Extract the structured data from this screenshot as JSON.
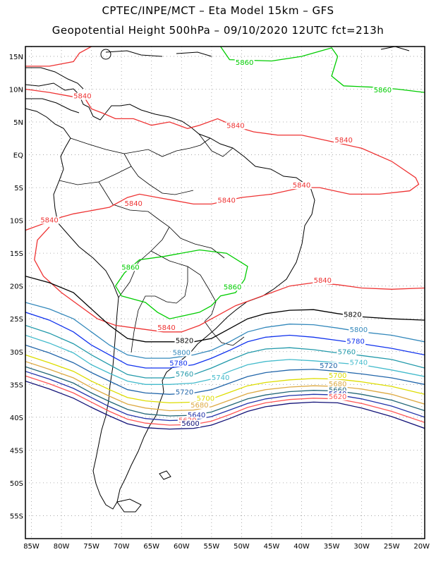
{
  "title_line1": "CPTEC/INPE/MCT –   Eta Model 15km – GFS",
  "title_line2": "Geopotential Height 500hPa – 09/10/2020 12UTC fct=213h",
  "map": {
    "lat_labels": [
      "15N",
      "10N",
      "5N",
      "EQ",
      "5S",
      "10S",
      "15S",
      "20S",
      "25S",
      "30S",
      "35S",
      "40S",
      "45S",
      "50S",
      "55S"
    ],
    "lat_values": [
      15,
      10,
      5,
      0,
      -5,
      -10,
      -15,
      -20,
      -25,
      -30,
      -35,
      -40,
      -45,
      -50,
      -55
    ],
    "lon_labels": [
      "85W",
      "80W",
      "75W",
      "70W",
      "65W",
      "60W",
      "55W",
      "50W",
      "45W",
      "40W",
      "35W",
      "30W",
      "25W",
      "20W"
    ],
    "lon_values": [
      -85,
      -80,
      -75,
      -70,
      -65,
      -60,
      -55,
      -50,
      -45,
      -40,
      -35,
      -30,
      -25,
      -20
    ],
    "lon_range": [
      -86,
      -19.5
    ],
    "lat_range": [
      -58.5,
      16.5
    ],
    "grid": "dotted",
    "coastline_color": "#000000"
  },
  "contours": [
    {
      "value": "5860",
      "color": "#00cc00",
      "labels": [
        {
          "text": "5860",
          "lon": -49.5,
          "lat": 13.7
        },
        {
          "text": "5860",
          "lon": -26.5,
          "lat": 9.5
        },
        {
          "text": "5860",
          "lon": -68.5,
          "lat": -17.5
        },
        {
          "text": "5860",
          "lon": -51.5,
          "lat": -20.5
        }
      ]
    },
    {
      "value": "5840",
      "color": "#ee3333",
      "labels": [
        {
          "text": "5840",
          "lon": -76.5,
          "lat": 8.6
        },
        {
          "text": "5840",
          "lon": -51.0,
          "lat": 4.1
        },
        {
          "text": "5840",
          "lon": -33.0,
          "lat": 1.9
        },
        {
          "text": "5840",
          "lon": -40.0,
          "lat": -5.0
        },
        {
          "text": "5840",
          "lon": -52.5,
          "lat": -7.3
        },
        {
          "text": "5840",
          "lon": -68.0,
          "lat": -7.8
        },
        {
          "text": "5840",
          "lon": -82.0,
          "lat": -10.3
        },
        {
          "text": "5840",
          "lon": -36.5,
          "lat": -19.5
        },
        {
          "text": "5840",
          "lon": -62.5,
          "lat": -26.7
        }
      ]
    },
    {
      "value": "5820",
      "color": "#000000",
      "labels": [
        {
          "text": "5820",
          "lon": -59.5,
          "lat": -28.7
        },
        {
          "text": "5820",
          "lon": -31.5,
          "lat": -24.7
        }
      ]
    },
    {
      "value": "5800",
      "color": "#3388bb",
      "labels": [
        {
          "text": "5800",
          "lon": -30.5,
          "lat": -27.0
        },
        {
          "text": "5800",
          "lon": -60.0,
          "lat": -30.5
        }
      ]
    },
    {
      "value": "5780",
      "color": "#1133ee",
      "labels": [
        {
          "text": "5780",
          "lon": -31.0,
          "lat": -28.8
        },
        {
          "text": "5780",
          "lon": -60.5,
          "lat": -32.1
        }
      ]
    },
    {
      "value": "5760",
      "color": "#2299aa",
      "labels": [
        {
          "text": "5760",
          "lon": -32.5,
          "lat": -30.4
        },
        {
          "text": "5760",
          "lon": -59.5,
          "lat": -33.8
        }
      ]
    },
    {
      "value": "5740",
      "color": "#44bbcc",
      "labels": [
        {
          "text": "5740",
          "lon": -30.5,
          "lat": -32.0
        },
        {
          "text": "5740",
          "lon": -53.5,
          "lat": -34.3
        }
      ]
    },
    {
      "value": "5720",
      "color": "#2266aa",
      "labels": [
        {
          "text": "5720",
          "lon": -35.5,
          "lat": -32.5
        },
        {
          "text": "5720",
          "lon": -59.5,
          "lat": -36.5
        }
      ]
    },
    {
      "value": "5700",
      "color": "#dddd00",
      "labels": [
        {
          "text": "5700",
          "lon": -34.0,
          "lat": -34.0
        },
        {
          "text": "5700",
          "lon": -56.0,
          "lat": -37.5
        }
      ]
    },
    {
      "value": "5680",
      "color": "#ddaa44",
      "labels": [
        {
          "text": "5680",
          "lon": -34.0,
          "lat": -35.3
        },
        {
          "text": "5680",
          "lon": -57.0,
          "lat": -38.5
        }
      ]
    },
    {
      "value": "5660",
      "color": "#226677",
      "labels": [
        {
          "text": "5660",
          "lon": -34.0,
          "lat": -36.2
        }
      ]
    },
    {
      "value": "5640",
      "color": "#2233aa",
      "labels": [
        {
          "text": "5640",
          "lon": -34.0,
          "lat": -36.8
        },
        {
          "text": "5640",
          "lon": -57.5,
          "lat": -40.0
        }
      ]
    },
    {
      "value": "5620",
      "color": "#ff5555",
      "labels": [
        {
          "text": "5620",
          "lon": -34.0,
          "lat": -37.2
        },
        {
          "text": "5620",
          "lon": -59.0,
          "lat": -40.8
        }
      ]
    },
    {
      "value": "5600",
      "color": "#111177",
      "labels": [
        {
          "text": "5600",
          "lon": -58.5,
          "lat": -41.3
        }
      ]
    }
  ]
}
